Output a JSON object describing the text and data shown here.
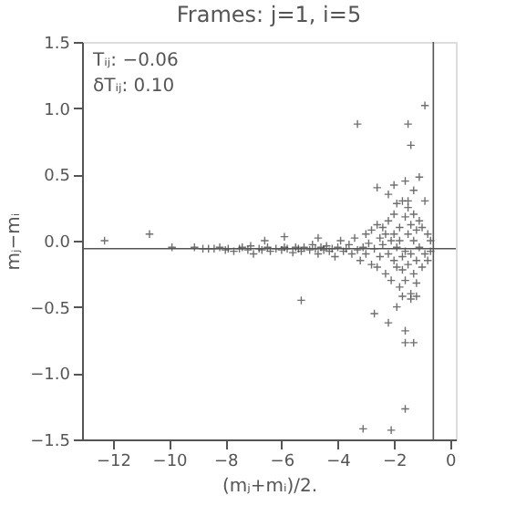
{
  "chart_data": {
    "type": "scatter",
    "title": "Frames: j=1, i=5",
    "xlabel": "(mⱼ+mᵢ)/2.",
    "ylabel": "mⱼ−mᵢ",
    "annotations": [
      "Tᵢⱼ: −0.06",
      "δTᵢⱼ:  0.10"
    ],
    "marker": "cross",
    "grid": false,
    "xlim": [
      -13.1,
      0.2
    ],
    "xticks": [
      -12,
      -10,
      -8,
      -6,
      -4,
      -2,
      0
    ],
    "ylim": [
      -1.5,
      1.5
    ],
    "yticks": [
      {
        "value": -1.5,
        "label": "−1.5"
      },
      {
        "value": -1.0,
        "label": "−1.0"
      },
      {
        "value": -0.5,
        "label": "−0.5"
      },
      {
        "value": 0,
        "label": "0.0"
      },
      {
        "value": 0.5,
        "label": "0.5"
      },
      {
        "value": 1.0,
        "label": "1.0"
      },
      {
        "value": 1.5,
        "label": "1.5"
      }
    ],
    "ref_lines": [
      {
        "axis": "y",
        "value": -0.06,
        "label": null,
        "color": "#555555"
      },
      {
        "axis": "x",
        "value": -0.6,
        "label": null,
        "color": "#555555"
      }
    ],
    "series": [
      {
        "color": "#333333",
        "x": [
          -12.3,
          -10.7,
          -9.9,
          -9.1,
          -8.8,
          -8.6,
          -8.4,
          -8.2,
          -8.0,
          -7.9,
          -7.7,
          -7.5,
          -7.4,
          -7.2,
          -7.1,
          -7.0,
          -6.8,
          -6.7,
          -6.5,
          -6.4,
          -6.2,
          -6.0,
          -5.9,
          -5.8,
          -5.6,
          -5.5,
          -5.4,
          -5.3,
          -5.2,
          -5.0,
          -4.9,
          -4.8,
          -4.7,
          -4.6,
          -4.5,
          -4.4,
          -4.3,
          -4.2,
          -4.1,
          -4.0,
          -3.9,
          -3.8,
          -3.7,
          -3.6,
          -3.5,
          -3.4,
          -3.3,
          -3.2,
          -3.1,
          -3.0,
          -3.0,
          -2.9,
          -2.8,
          -2.8,
          -2.7,
          -2.6,
          -2.6,
          -2.5,
          -2.5,
          -2.4,
          -2.4,
          -2.3,
          -2.3,
          -2.2,
          -2.2,
          -2.1,
          -2.1,
          -2.0,
          -2.0,
          -2.0,
          -1.9,
          -1.9,
          -1.9,
          -1.8,
          -1.8,
          -1.8,
          -1.7,
          -1.7,
          -1.7,
          -1.6,
          -1.6,
          -1.6,
          -1.5,
          -1.5,
          -1.5,
          -1.4,
          -1.4,
          -1.4,
          -1.3,
          -1.3,
          -1.3,
          -1.2,
          -1.2,
          -1.2,
          -1.1,
          -1.1,
          -1.0,
          -1.0,
          -0.9,
          -0.9,
          -0.8,
          -0.8,
          -0.7,
          -0.7,
          -6.6,
          -5.9,
          -4.7,
          -3.3,
          -1.5,
          -1.4,
          -0.9,
          -2.6,
          -2.0,
          -1.6,
          -1.3,
          -1.1,
          -5.3,
          -2.7,
          -2.2,
          -1.9,
          -1.6,
          -1.6,
          -1.3,
          -1.4,
          -1.6,
          -3.1,
          -2.1,
          -2.2,
          -1.7,
          -1.5,
          -1.2
        ],
        "values": [
          0.0,
          0.05,
          -0.05,
          -0.05,
          -0.06,
          -0.06,
          -0.06,
          -0.05,
          -0.07,
          -0.06,
          -0.08,
          -0.06,
          -0.05,
          -0.07,
          -0.04,
          -0.1,
          -0.06,
          -0.07,
          -0.05,
          -0.08,
          -0.06,
          -0.07,
          -0.05,
          -0.06,
          -0.09,
          -0.05,
          -0.06,
          -0.08,
          -0.05,
          -0.07,
          -0.03,
          -0.06,
          -0.1,
          -0.05,
          -0.07,
          -0.04,
          -0.08,
          -0.06,
          -0.12,
          -0.05,
          0.0,
          -0.08,
          -0.06,
          -0.03,
          -0.1,
          0.02,
          -0.07,
          -0.15,
          -0.05,
          0.05,
          -0.1,
          -0.02,
          -0.18,
          0.08,
          -0.06,
          0.12,
          -0.2,
          0.02,
          -0.12,
          0.1,
          -0.03,
          -0.25,
          0.05,
          0.15,
          -0.1,
          -0.3,
          0.0,
          0.2,
          -0.15,
          0.05,
          0.28,
          -0.2,
          -0.05,
          0.1,
          -0.35,
          0.0,
          0.3,
          -0.12,
          -0.22,
          0.18,
          -0.08,
          -0.3,
          0.25,
          0.05,
          -0.18,
          0.12,
          -0.4,
          -0.1,
          0.2,
          -0.25,
          0.0,
          0.08,
          -0.32,
          -0.15,
          0.15,
          -0.05,
          0.1,
          -0.2,
          0.3,
          -0.1,
          0.05,
          -0.15,
          0.0,
          -0.08,
          0.0,
          0.03,
          0.02,
          0.88,
          0.88,
          0.72,
          1.02,
          0.4,
          0.42,
          0.45,
          0.38,
          0.48,
          -0.45,
          -0.55,
          -0.62,
          -0.5,
          -0.68,
          -0.77,
          -0.77,
          -0.44,
          -1.27,
          -1.42,
          -1.43,
          0.35,
          -0.42,
          0.3,
          -0.42
        ]
      }
    ]
  }
}
